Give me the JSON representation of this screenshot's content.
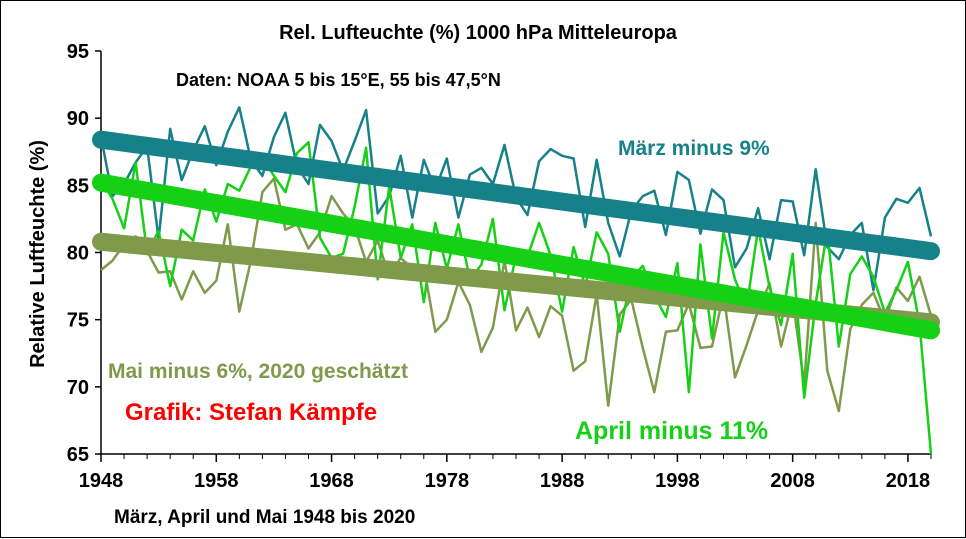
{
  "chart_data": {
    "type": "line",
    "title": "Rel. Lufteuchte (%) 1000 hPa Mitteleuropa",
    "subtitle": "Daten: NOAA 5 bis 15°E, 55 bis 47,5°N",
    "xlabel": "März, April und Mai 1948 bis 2020",
    "ylabel": "Relative Luftfeuchte (%)",
    "credit": "Grafik: Stefan Kämpfe",
    "xlim": [
      1948,
      2020
    ],
    "ylim": [
      65,
      95
    ],
    "x_ticks": [
      1948,
      1958,
      1968,
      1978,
      1988,
      1998,
      2008,
      2018
    ],
    "y_ticks": [
      65,
      70,
      75,
      80,
      85,
      90,
      95
    ],
    "grid": false,
    "x_start": 1948,
    "series": [
      {
        "key": "maerz",
        "color": "#17818A",
        "label_text": "März minus 9%",
        "values": [
          88.6,
          84.2,
          85.1,
          86.7,
          87.9,
          81.0,
          89.2,
          85.4,
          87.6,
          89.4,
          86.5,
          89.0,
          90.8,
          86.9,
          85.7,
          88.6,
          90.4,
          86.4,
          85.1,
          89.5,
          88.3,
          86.1,
          88.3,
          90.6,
          82.9,
          84.2,
          87.2,
          82.6,
          86.9,
          84.7,
          87.0,
          82.6,
          85.8,
          86.3,
          85.1,
          88.0,
          84.1,
          82.8,
          86.8,
          87.7,
          87.2,
          87.0,
          81.9,
          86.9,
          82.2,
          79.7,
          83.1,
          84.2,
          84.6,
          81.3,
          86.0,
          85.4,
          81.4,
          84.7,
          83.9,
          78.9,
          80.3,
          83.3,
          79.5,
          83.9,
          83.8,
          79.8,
          86.2,
          80.4,
          79.5,
          81.3,
          82.2,
          77.2,
          82.6,
          84.0,
          83.7,
          84.8,
          81.2
        ],
        "trend": [
          88.4,
          80.1
        ]
      },
      {
        "key": "april",
        "color": "#16D016",
        "label_text": "April minus 11%",
        "values": [
          85.4,
          84.0,
          81.8,
          86.7,
          80.0,
          81.6,
          77.5,
          81.7,
          80.9,
          84.7,
          82.3,
          85.1,
          84.6,
          86.4,
          87.1,
          85.7,
          84.5,
          87.4,
          88.2,
          81.1,
          79.6,
          79.9,
          83.4,
          87.8,
          78.0,
          84.9,
          79.6,
          82.1,
          76.3,
          82.2,
          78.8,
          82.1,
          78.0,
          79.1,
          82.5,
          75.7,
          79.8,
          79.7,
          82.2,
          79.8,
          75.6,
          80.4,
          77.5,
          81.5,
          79.9,
          74.1,
          78.1,
          79.0,
          76.8,
          75.2,
          79.2,
          69.6,
          80.6,
          73.6,
          81.5,
          78.0,
          75.9,
          81.8,
          77.4,
          74.6,
          79.9,
          69.2,
          76.2,
          81.7,
          73.0,
          78.4,
          79.7,
          78.2,
          75.5,
          77.2,
          79.3,
          74.7,
          65.0
        ],
        "trend": [
          85.2,
          74.2
        ]
      },
      {
        "key": "mai",
        "color": "#7E9A4A",
        "label_text": "Mai minus 6%, 2020 geschätzt",
        "values": [
          78.7,
          79.4,
          80.6,
          81.2,
          80.1,
          78.5,
          78.6,
          76.5,
          78.6,
          77.0,
          77.9,
          82.1,
          75.6,
          79.4,
          84.5,
          85.5,
          81.7,
          82.1,
          80.3,
          81.5,
          84.2,
          82.9,
          81.9,
          79.3,
          80.9,
          78.2,
          79.6,
          78.8,
          79.0,
          74.1,
          75.0,
          77.8,
          76.1,
          72.6,
          74.4,
          79.4,
          74.2,
          75.9,
          73.7,
          76.0,
          75.3,
          71.2,
          71.9,
          76.9,
          68.6,
          75.4,
          76.5,
          72.9,
          69.6,
          74.1,
          74.2,
          76.2,
          72.9,
          73.0,
          76.9,
          70.7,
          73.1,
          75.7,
          77.7,
          73.0,
          76.5,
          70.2,
          82.2,
          71.2,
          68.2,
          74.3,
          76.1,
          77.0,
          74.9,
          77.4,
          76.4,
          78.2,
          75.3
        ],
        "trend": [
          80.8,
          74.8
        ]
      }
    ]
  }
}
